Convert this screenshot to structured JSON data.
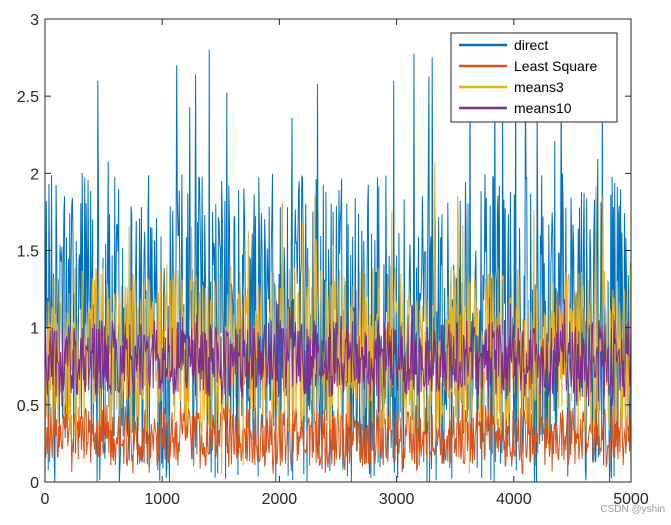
{
  "chart_data": {
    "type": "line",
    "title": "",
    "xlabel": "",
    "ylabel": "",
    "xlim": [
      0,
      5000
    ],
    "ylim": [
      0,
      3
    ],
    "x_ticks": [
      "0",
      "1000",
      "2000",
      "3000",
      "4000",
      "5000"
    ],
    "y_ticks": [
      "0",
      "0.5",
      "1",
      "1.5",
      "2",
      "2.5",
      "3"
    ],
    "grid": false,
    "legend_position": "top-right",
    "series": [
      {
        "name": "direct",
        "color": "#0072BD",
        "n_points": 5000,
        "typical_range": [
          0.0,
          2.0
        ],
        "peak_max": 2.8,
        "min": 0.0
      },
      {
        "name": "Least Square",
        "color": "#D95319",
        "n_points": 5000,
        "typical_range": [
          0.1,
          0.5
        ],
        "peak_max": 0.6,
        "min": 0.05
      },
      {
        "name": "means3",
        "color": "#EDB120",
        "n_points": 5000,
        "typical_range": [
          0.3,
          1.4
        ],
        "peak_max": 2.07,
        "min": 0.05
      },
      {
        "name": "means10",
        "color": "#7E2F8E",
        "n_points": 5000,
        "typical_range": [
          0.55,
          1.05
        ],
        "peak_max": 1.25,
        "min": 0.45
      }
    ]
  },
  "watermark": "CSDN @yshin"
}
